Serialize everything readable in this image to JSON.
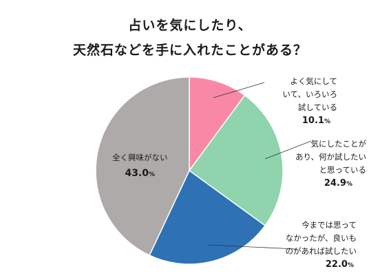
{
  "chart_data": {
    "type": "pie",
    "title_lines": [
      "占いを気にしたり、",
      "天然石などを手に入れたことがある？"
    ],
    "unit": "%",
    "slices": [
      {
        "label_lines": [
          "よく気にして",
          "いて、いろいろ",
          "試している"
        ],
        "value": 10.1,
        "value_text": "10.1",
        "color": "#f988a6"
      },
      {
        "label_lines": [
          "気にしたことが",
          "あり、何か試したい",
          "と思っている"
        ],
        "value": 24.9,
        "value_text": "24.9",
        "color": "#8fd4ac"
      },
      {
        "label_lines": [
          "今までは思って",
          "なかったが、良いも",
          "のがあれば試したい"
        ],
        "value": 22.0,
        "value_text": "22.0",
        "color": "#2e72b5"
      },
      {
        "label_lines": [
          "全く興味がない"
        ],
        "value": 43.0,
        "value_text": "43.0",
        "color": "#aeaaaa"
      }
    ]
  }
}
